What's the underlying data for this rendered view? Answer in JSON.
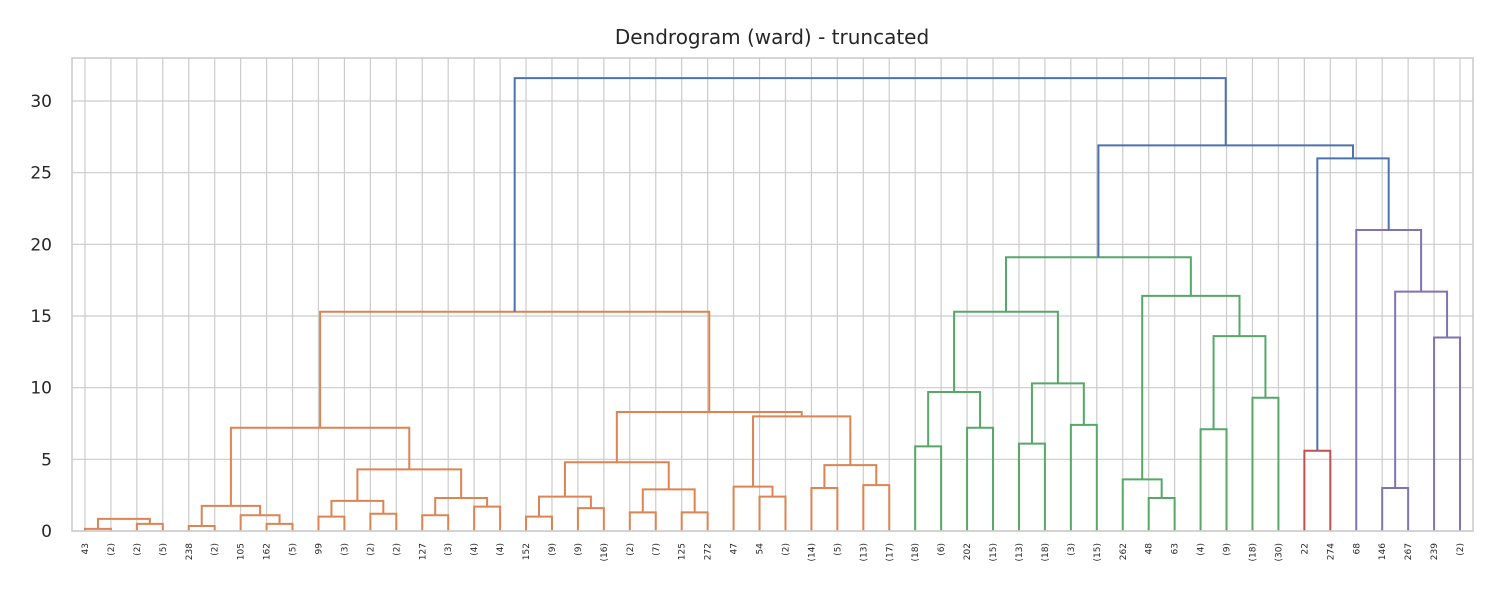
{
  "chart_data": {
    "type": "dendrogram",
    "title": "Dendrogram (ward) - truncated",
    "xlabel": "",
    "ylabel": "",
    "ylim": [
      0,
      33
    ],
    "yticks": [
      0,
      5,
      10,
      15,
      20,
      25,
      30
    ],
    "grid": true,
    "leaf_labels": [
      "43",
      "(2)",
      "(2)",
      "(5)",
      "238",
      "(2)",
      "105",
      "162",
      "(5)",
      "99",
      "(3)",
      "(2)",
      "(2)",
      "127",
      "(3)",
      "(4)",
      "(4)",
      "152",
      "(9)",
      "(9)",
      "(16)",
      "(2)",
      "(7)",
      "125",
      "272",
      "47",
      "54",
      "(2)",
      "(14)",
      "(5)",
      "(13)",
      "(17)",
      "(18)",
      "(6)",
      "202",
      "(15)",
      "(13)",
      "(18)",
      "(3)",
      "(15)",
      "262",
      "48",
      "63",
      "(4)",
      "(9)",
      "(18)",
      "(30)",
      "22",
      "274",
      "68",
      "146",
      "267",
      "239",
      "(2)"
    ],
    "colors": {
      "c1": "#dd8452",
      "c2": "#55a868",
      "c3": "#c44e52",
      "c4": "#8172b3",
      "above": "#4c72b0"
    },
    "links": [
      {
        "a": "L0",
        "b": "L1",
        "h": 0.15,
        "c": "c1"
      },
      {
        "a": "L2",
        "b": "L3",
        "h": 0.5,
        "c": "c1"
      },
      {
        "a": "m0",
        "b": "m1",
        "h": 0.85,
        "c": "c1"
      },
      {
        "a": "L4",
        "b": "L5",
        "h": 0.35,
        "c": "c1"
      },
      {
        "a": "L7",
        "b": "L8",
        "h": 0.5,
        "c": "c1"
      },
      {
        "a": "L6",
        "b": "m4",
        "h": 1.1,
        "c": "c1"
      },
      {
        "a": "m3",
        "b": "m5",
        "h": 1.75,
        "c": "c1"
      },
      {
        "a": "L9",
        "b": "L10",
        "h": 1.0,
        "c": "c1"
      },
      {
        "a": "L11",
        "b": "L12",
        "h": 1.2,
        "c": "c1"
      },
      {
        "a": "m7",
        "b": "m8",
        "h": 2.1,
        "c": "c1"
      },
      {
        "a": "L13",
        "b": "L14",
        "h": 1.1,
        "c": "c1"
      },
      {
        "a": "L15",
        "b": "L16",
        "h": 1.7,
        "c": "c1"
      },
      {
        "a": "m10",
        "b": "m11",
        "h": 2.3,
        "c": "c1"
      },
      {
        "a": "m9",
        "b": "m12",
        "h": 4.3,
        "c": "c1"
      },
      {
        "a": "m6",
        "b": "m13",
        "h": 7.2,
        "c": "c1"
      },
      {
        "a": "L17",
        "b": "L18",
        "h": 1.0,
        "c": "c1"
      },
      {
        "a": "L19",
        "b": "L20",
        "h": 1.6,
        "c": "c1"
      },
      {
        "a": "m15",
        "b": "m16",
        "h": 2.4,
        "c": "c1"
      },
      {
        "a": "L21",
        "b": "L22",
        "h": 1.3,
        "c": "c1"
      },
      {
        "a": "L23",
        "b": "L24",
        "h": 1.3,
        "c": "c1"
      },
      {
        "a": "m18",
        "b": "m19",
        "h": 2.9,
        "c": "c1"
      },
      {
        "a": "m17",
        "b": "m20",
        "h": 4.8,
        "c": "c1"
      },
      {
        "a": "L26",
        "b": "L27",
        "h": 2.4,
        "c": "c1"
      },
      {
        "a": "L25",
        "b": "m22",
        "h": 3.1,
        "c": "c1"
      },
      {
        "a": "L28",
        "b": "L29",
        "h": 3.0,
        "c": "c1"
      },
      {
        "a": "L30",
        "b": "L31",
        "h": 3.2,
        "c": "c1"
      },
      {
        "a": "m24",
        "b": "m25",
        "h": 4.6,
        "c": "c1"
      },
      {
        "a": "m23",
        "b": "m26",
        "h": 8.0,
        "c": "c1"
      },
      {
        "a": "m21",
        "b": "m27",
        "h": 8.3,
        "c": "c1"
      },
      {
        "a": "m14",
        "b": "m28",
        "h": 15.3,
        "c": "c1"
      },
      {
        "a": "L32",
        "b": "L33",
        "h": 5.9,
        "c": "c2"
      },
      {
        "a": "L34",
        "b": "L35",
        "h": 7.2,
        "c": "c2"
      },
      {
        "a": "m30",
        "b": "m31",
        "h": 9.7,
        "c": "c2"
      },
      {
        "a": "L36",
        "b": "L37",
        "h": 6.1,
        "c": "c2"
      },
      {
        "a": "L38",
        "b": "L39",
        "h": 7.4,
        "c": "c2"
      },
      {
        "a": "m33",
        "b": "m34",
        "h": 10.3,
        "c": "c2"
      },
      {
        "a": "m32",
        "b": "m35",
        "h": 15.3,
        "c": "c2"
      },
      {
        "a": "L41",
        "b": "L42",
        "h": 2.3,
        "c": "c2"
      },
      {
        "a": "L40",
        "b": "m37",
        "h": 3.6,
        "c": "c2"
      },
      {
        "a": "L43",
        "b": "L44",
        "h": 7.1,
        "c": "c2"
      },
      {
        "a": "L45",
        "b": "L46",
        "h": 9.3,
        "c": "c2"
      },
      {
        "a": "m39",
        "b": "m40",
        "h": 13.6,
        "c": "c2"
      },
      {
        "a": "m38",
        "b": "m41",
        "h": 16.4,
        "c": "c2"
      },
      {
        "a": "m36",
        "b": "m42",
        "h": 19.1,
        "c": "c2"
      },
      {
        "a": "L47",
        "b": "L48",
        "h": 5.6,
        "c": "c3"
      },
      {
        "a": "L50",
        "b": "L51",
        "h": 3.0,
        "c": "c4"
      },
      {
        "a": "L52",
        "b": "L53",
        "h": 13.5,
        "c": "c4"
      },
      {
        "a": "m45",
        "b": "m46",
        "h": 16.7,
        "c": "c4"
      },
      {
        "a": "L49",
        "b": "m47",
        "h": 21.0,
        "c": "c4"
      },
      {
        "a": "m44",
        "b": "m48",
        "h": 26.0,
        "c": "above"
      },
      {
        "a": "m43",
        "b": "m49",
        "h": 26.9,
        "c": "above"
      },
      {
        "a": "m29",
        "b": "m50",
        "h": 31.6,
        "c": "above"
      }
    ]
  }
}
